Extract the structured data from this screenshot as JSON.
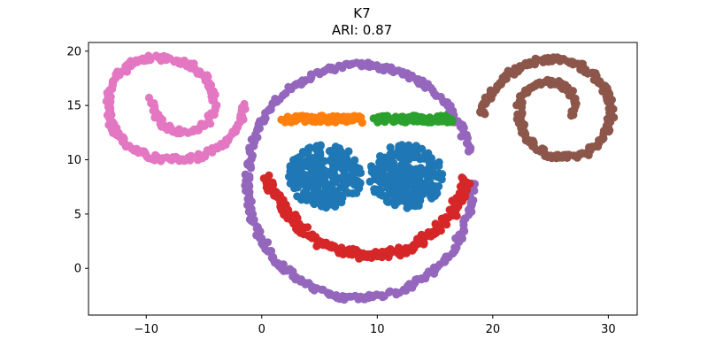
{
  "chart_data": {
    "type": "scatter",
    "title": "K7",
    "subtitle": "ARI: 0.87",
    "xlabel": "",
    "ylabel": "",
    "xlim": [
      -15,
      32.5
    ],
    "ylim": [
      -4.3,
      20.8
    ],
    "grid": false,
    "x_ticks": [
      -10,
      0,
      10,
      20,
      30
    ],
    "y_ticks": [
      0,
      5,
      10,
      15,
      20
    ],
    "x_tick_labels": [
      "−10",
      "0",
      "10",
      "20",
      "30"
    ],
    "y_tick_labels": [
      "0",
      "5",
      "10",
      "15",
      "20"
    ],
    "series": [
      {
        "color": "#e377c2",
        "shape": "spiral",
        "points": [
          [
            -9.5,
            15.5
          ],
          [
            -9.3,
            14.2
          ],
          [
            -8.6,
            13.2
          ],
          [
            -7.4,
            12.6
          ],
          [
            -6.0,
            12.6
          ],
          [
            -4.8,
            13.3
          ],
          [
            -4.1,
            14.5
          ],
          [
            -4.1,
            16.0
          ],
          [
            -4.8,
            17.4
          ],
          [
            -6.1,
            18.6
          ],
          [
            -7.8,
            19.3
          ],
          [
            -9.7,
            19.4
          ],
          [
            -11.4,
            18.8
          ],
          [
            -12.7,
            17.6
          ],
          [
            -13.3,
            16.0
          ],
          [
            -13.3,
            14.2
          ],
          [
            -12.7,
            12.6
          ],
          [
            -11.5,
            11.2
          ],
          [
            -9.8,
            10.3
          ],
          [
            -7.8,
            10.0
          ],
          [
            -5.7,
            10.2
          ],
          [
            -3.9,
            11.0
          ],
          [
            -2.5,
            12.3
          ],
          [
            -1.8,
            13.7
          ],
          [
            -1.5,
            15.2
          ]
        ]
      },
      {
        "color": "#8c564b",
        "shape": "spiral",
        "points": [
          [
            27.0,
            14.0
          ],
          [
            27.1,
            15.0
          ],
          [
            26.8,
            16.1
          ],
          [
            26.0,
            16.9
          ],
          [
            24.9,
            17.2
          ],
          [
            23.7,
            16.9
          ],
          [
            22.8,
            16.2
          ],
          [
            22.3,
            15.0
          ],
          [
            22.3,
            13.6
          ],
          [
            22.8,
            12.2
          ],
          [
            23.8,
            11.1
          ],
          [
            25.1,
            10.3
          ],
          [
            26.6,
            10.2
          ],
          [
            28.0,
            10.6
          ],
          [
            29.2,
            11.5
          ],
          [
            30.0,
            12.8
          ],
          [
            30.3,
            14.3
          ],
          [
            30.0,
            15.9
          ],
          [
            29.2,
            17.4
          ],
          [
            27.9,
            18.5
          ],
          [
            26.4,
            19.2
          ],
          [
            24.7,
            19.3
          ],
          [
            23.0,
            18.9
          ],
          [
            21.5,
            18.0
          ],
          [
            20.3,
            16.7
          ],
          [
            19.4,
            15.3
          ],
          [
            19.0,
            14.1
          ]
        ]
      },
      {
        "color": "#9467bd",
        "shape": "ring",
        "points": [
          [
            18.3,
            8.0
          ],
          [
            18.0,
            5.3
          ],
          [
            17.2,
            2.9
          ],
          [
            15.9,
            0.8
          ],
          [
            14.1,
            -0.9
          ],
          [
            12.0,
            -2.1
          ],
          [
            9.7,
            -2.7
          ],
          [
            7.3,
            -2.7
          ],
          [
            5.0,
            -2.1
          ],
          [
            2.9,
            -0.9
          ],
          [
            1.1,
            0.8
          ],
          [
            -0.2,
            2.9
          ],
          [
            -1.0,
            5.3
          ],
          [
            -1.3,
            8.0
          ],
          [
            -1.0,
            10.7
          ],
          [
            -0.2,
            13.1
          ],
          [
            1.1,
            15.2
          ],
          [
            2.9,
            16.9
          ],
          [
            5.0,
            18.1
          ],
          [
            7.3,
            18.7
          ],
          [
            9.7,
            18.7
          ],
          [
            12.0,
            18.1
          ],
          [
            14.1,
            16.9
          ],
          [
            15.9,
            15.2
          ],
          [
            17.2,
            13.1
          ],
          [
            18.0,
            10.7
          ]
        ]
      },
      {
        "color": "#ff7f0e",
        "shape": "band",
        "points": [
          [
            1.8,
            13.7
          ],
          [
            3.0,
            13.8
          ],
          [
            4.2,
            13.7
          ],
          [
            5.4,
            13.8
          ],
          [
            6.6,
            13.7
          ],
          [
            7.8,
            13.8
          ],
          [
            8.6,
            13.7
          ]
        ]
      },
      {
        "color": "#2ca02c",
        "shape": "band",
        "points": [
          [
            9.8,
            13.7
          ],
          [
            11.0,
            13.8
          ],
          [
            12.2,
            13.7
          ],
          [
            13.4,
            13.8
          ],
          [
            14.6,
            13.7
          ],
          [
            15.8,
            13.8
          ],
          [
            16.4,
            13.7
          ]
        ]
      },
      {
        "color": "#d62728",
        "shape": "arc",
        "points": [
          [
            0.5,
            8.5
          ],
          [
            1.0,
            7.0
          ],
          [
            1.8,
            5.6
          ],
          [
            2.8,
            4.3
          ],
          [
            4.0,
            3.2
          ],
          [
            5.3,
            2.3
          ],
          [
            6.8,
            1.7
          ],
          [
            8.4,
            1.3
          ],
          [
            10.0,
            1.2
          ],
          [
            11.6,
            1.4
          ],
          [
            13.1,
            2.0
          ],
          [
            14.4,
            2.9
          ],
          [
            15.6,
            4.0
          ],
          [
            16.6,
            5.3
          ],
          [
            17.3,
            6.8
          ],
          [
            17.7,
            8.3
          ]
        ]
      },
      {
        "color": "#1f77b4",
        "shape": "blobs",
        "blobs": [
          {
            "center": [
              5.5,
              8.5
            ],
            "radius": 3.2
          },
          {
            "center": [
              12.5,
              8.5
            ],
            "radius": 3.2
          }
        ]
      }
    ]
  }
}
